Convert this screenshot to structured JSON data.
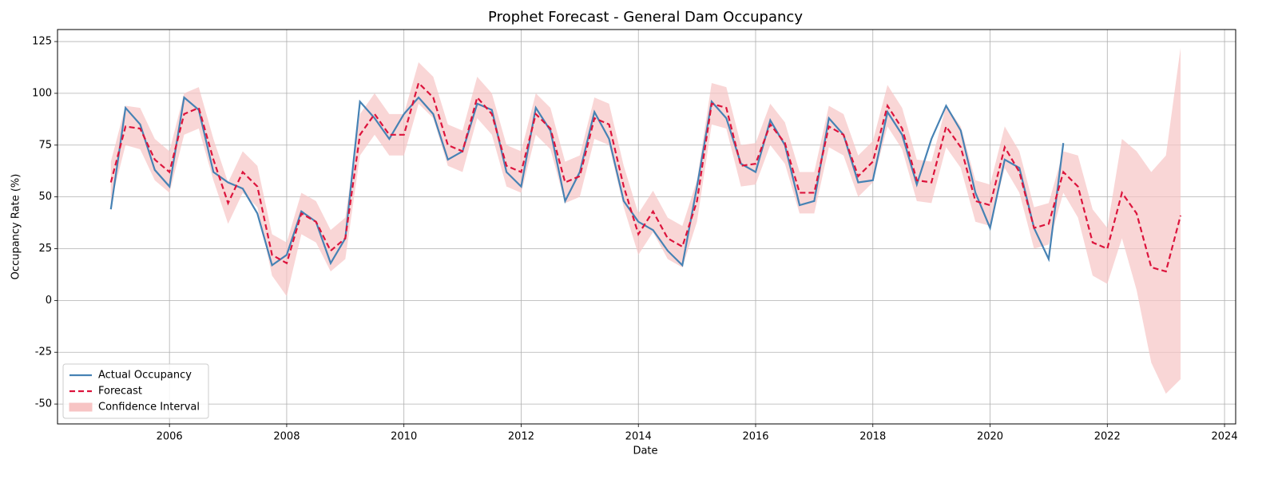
{
  "chart_data": {
    "type": "line",
    "title": "Prophet Forecast - General Dam Occupancy",
    "x_label": "Date",
    "y_label": "Occupancy Rate (%)",
    "xlim": [
      2004.09,
      2024.19
    ],
    "xticks": [
      2006,
      2008,
      2010,
      2012,
      2014,
      2016,
      2018,
      2020,
      2022,
      2024
    ],
    "ylim": [
      -59.6,
      130.8
    ],
    "yticks": [
      -50,
      -25,
      0,
      25,
      50,
      75,
      100,
      125
    ],
    "grid": true,
    "legend": "lower left",
    "series": [
      {
        "name": "Actual Occupancy",
        "color": "#4682b4",
        "x": [
          2005.0,
          2005.25,
          2005.5,
          2005.75,
          2006.0,
          2006.25,
          2006.5,
          2006.75,
          2007.0,
          2007.25,
          2007.5,
          2007.75,
          2008.0,
          2008.25,
          2008.5,
          2008.75,
          2009.0,
          2009.25,
          2009.5,
          2009.75,
          2010.0,
          2010.25,
          2010.5,
          2010.75,
          2011.0,
          2011.25,
          2011.5,
          2011.75,
          2012.0,
          2012.25,
          2012.5,
          2012.75,
          2013.0,
          2013.25,
          2013.5,
          2013.75,
          2014.0,
          2014.25,
          2014.5,
          2014.75,
          2015.0,
          2015.25,
          2015.5,
          2015.75,
          2016.0,
          2016.25,
          2016.5,
          2016.75,
          2017.0,
          2017.25,
          2017.5,
          2017.75,
          2018.0,
          2018.25,
          2018.5,
          2018.75,
          2019.0,
          2019.25,
          2019.5,
          2019.75,
          2020.0,
          2020.25,
          2020.5,
          2020.75,
          2021.0,
          2021.25
        ],
        "values": [
          44,
          93,
          85,
          63,
          55,
          98,
          92,
          62,
          57,
          54,
          42,
          17,
          22,
          43,
          38,
          18,
          30,
          96,
          88,
          78,
          90,
          98,
          90,
          68,
          72,
          95,
          92,
          62,
          55,
          93,
          82,
          48,
          62,
          91,
          78,
          48,
          38,
          34,
          24,
          17,
          55,
          96,
          88,
          66,
          62,
          87,
          75,
          46,
          48,
          88,
          80,
          57,
          58,
          91,
          80,
          56,
          78,
          94,
          82,
          52,
          35,
          68,
          64,
          35,
          20,
          76
        ]
      },
      {
        "name": "Forecast",
        "color": "#dc143c",
        "dash": "7,4",
        "x": [
          2005.0,
          2005.25,
          2005.5,
          2005.75,
          2006.0,
          2006.25,
          2006.5,
          2006.75,
          2007.0,
          2007.25,
          2007.5,
          2007.75,
          2008.0,
          2008.25,
          2008.5,
          2008.75,
          2009.0,
          2009.25,
          2009.5,
          2009.75,
          2010.0,
          2010.25,
          2010.5,
          2010.75,
          2011.0,
          2011.25,
          2011.5,
          2011.75,
          2012.0,
          2012.25,
          2012.5,
          2012.75,
          2013.0,
          2013.25,
          2013.5,
          2013.75,
          2014.0,
          2014.25,
          2014.5,
          2014.75,
          2015.0,
          2015.25,
          2015.5,
          2015.75,
          2016.0,
          2016.25,
          2016.5,
          2016.75,
          2017.0,
          2017.25,
          2017.5,
          2017.75,
          2018.0,
          2018.25,
          2018.5,
          2018.75,
          2019.0,
          2019.25,
          2019.5,
          2019.75,
          2020.0,
          2020.25,
          2020.5,
          2020.75,
          2021.0,
          2021.25,
          2021.5,
          2021.75,
          2022.0,
          2022.25,
          2022.5,
          2022.75,
          2023.0,
          2023.25
        ],
        "values": [
          57,
          84,
          83,
          68,
          62,
          90,
          93,
          68,
          47,
          62,
          55,
          22,
          18,
          42,
          38,
          24,
          30,
          80,
          90,
          80,
          80,
          105,
          98,
          75,
          72,
          98,
          90,
          65,
          62,
          90,
          83,
          57,
          60,
          88,
          85,
          55,
          32,
          43,
          30,
          26,
          48,
          95,
          93,
          65,
          66,
          85,
          76,
          52,
          52,
          84,
          80,
          60,
          67,
          94,
          83,
          58,
          57,
          84,
          74,
          48,
          46,
          74,
          62,
          35,
          37,
          62,
          55,
          28,
          25,
          52,
          42,
          16,
          14,
          41
        ]
      },
      {
        "name": "Confidence Interval",
        "color": "#f7c4c4",
        "x": [
          2005.0,
          2005.25,
          2005.5,
          2005.75,
          2006.0,
          2006.25,
          2006.5,
          2006.75,
          2007.0,
          2007.25,
          2007.5,
          2007.75,
          2008.0,
          2008.25,
          2008.5,
          2008.75,
          2009.0,
          2009.25,
          2009.5,
          2009.75,
          2010.0,
          2010.25,
          2010.5,
          2010.75,
          2011.0,
          2011.25,
          2011.5,
          2011.75,
          2012.0,
          2012.25,
          2012.5,
          2012.75,
          2013.0,
          2013.25,
          2013.5,
          2013.75,
          2014.0,
          2014.25,
          2014.5,
          2014.75,
          2015.0,
          2015.25,
          2015.5,
          2015.75,
          2016.0,
          2016.25,
          2016.5,
          2016.75,
          2017.0,
          2017.25,
          2017.5,
          2017.75,
          2018.0,
          2018.25,
          2018.5,
          2018.75,
          2019.0,
          2019.25,
          2019.5,
          2019.75,
          2020.0,
          2020.25,
          2020.5,
          2020.75,
          2021.0,
          2021.25,
          2021.5,
          2021.75,
          2022.0,
          2022.25,
          2022.5,
          2022.75,
          2023.0,
          2023.25
        ],
        "lower": [
          47,
          75,
          73,
          58,
          52,
          80,
          83,
          58,
          37,
          52,
          45,
          12,
          2,
          32,
          28,
          14,
          20,
          70,
          80,
          70,
          70,
          95,
          88,
          65,
          62,
          88,
          80,
          55,
          52,
          80,
          73,
          47,
          50,
          78,
          75,
          45,
          22,
          33,
          20,
          16,
          38,
          85,
          83,
          55,
          56,
          75,
          66,
          42,
          42,
          74,
          70,
          50,
          57,
          84,
          73,
          48,
          47,
          74,
          64,
          38,
          36,
          64,
          52,
          25,
          27,
          52,
          40,
          12,
          8,
          30,
          5,
          -30,
          -45,
          -38
        ],
        "upper": [
          67,
          94,
          93,
          78,
          72,
          100,
          103,
          78,
          57,
          72,
          65,
          32,
          28,
          52,
          48,
          34,
          40,
          90,
          100,
          90,
          90,
          115,
          108,
          85,
          82,
          108,
          100,
          75,
          72,
          100,
          93,
          67,
          70,
          98,
          95,
          65,
          42,
          53,
          40,
          36,
          58,
          105,
          103,
          75,
          76,
          95,
          86,
          62,
          62,
          94,
          90,
          70,
          77,
          104,
          93,
          68,
          67,
          94,
          84,
          58,
          56,
          84,
          72,
          45,
          47,
          72,
          70,
          44,
          35,
          78,
          72,
          62,
          70,
          122
        ]
      }
    ]
  }
}
